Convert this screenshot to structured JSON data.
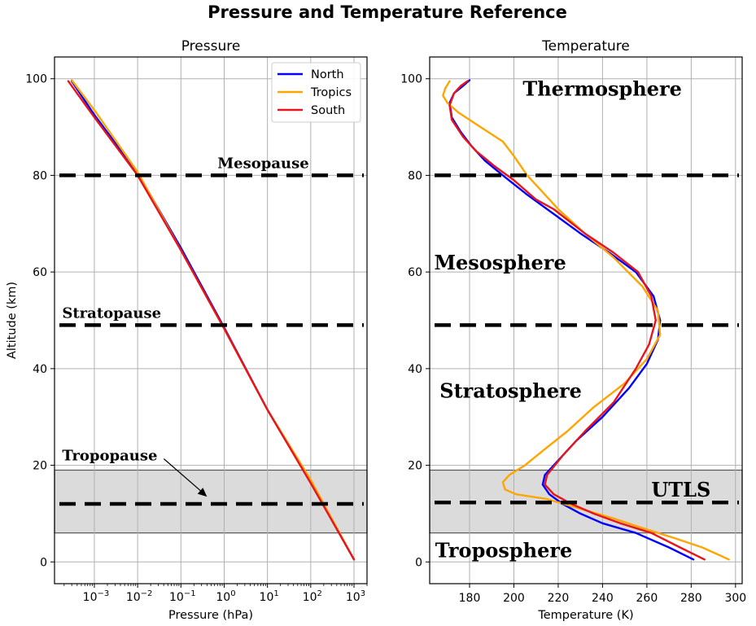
{
  "title": "Pressure and Temperature Reference",
  "colors": {
    "North": "#0000ff",
    "Tropics": "#ffa500",
    "South": "#e8141c",
    "shade": "#dcdbdc",
    "grid": "#b0b0b0"
  },
  "chart_data": [
    {
      "type": "line",
      "title": "Pressure",
      "xlabel": "Pressure (hPa)",
      "ylabel": "Altitude (km)",
      "xscale": "log",
      "xlim": [
        0.00012,
        2000
      ],
      "ylim": [
        -4.5,
        104.5
      ],
      "xticks": [
        {
          "base": "10",
          "exp": "−3",
          "value": 0.001
        },
        {
          "base": "10",
          "exp": "−2",
          "value": 0.01
        },
        {
          "base": "10",
          "exp": "−1",
          "value": 0.1
        },
        {
          "base": "10",
          "exp": "0",
          "value": 1
        },
        {
          "base": "10",
          "exp": "1",
          "value": 10
        },
        {
          "base": "10",
          "exp": "2",
          "value": 100
        },
        {
          "base": "10",
          "exp": "3",
          "value": 1000
        }
      ],
      "yticks": [
        "0",
        "20",
        "40",
        "60",
        "80",
        "100"
      ],
      "grid": true,
      "legend": {
        "placement": "top-right",
        "entries": [
          "North",
          "Tropics",
          "South"
        ]
      },
      "series": [
        {
          "name": "North",
          "x": [
            1000,
            100,
            10,
            1,
            0.1,
            0.01,
            0.001,
            0.0003
          ],
          "y": [
            0.5,
            16.5,
            31.5,
            48.5,
            65.0,
            80.5,
            92.5,
            99.5
          ]
        },
        {
          "name": "Tropics",
          "x": [
            1000,
            100,
            10,
            1,
            0.1,
            0.01,
            0.001,
            0.0003
          ],
          "y": [
            0.5,
            17.0,
            31.5,
            48.2,
            64.5,
            80.7,
            93.5,
            99.7
          ]
        },
        {
          "name": "South",
          "x": [
            1000,
            100,
            10,
            1,
            0.1,
            0.01,
            0.001,
            0.00025
          ],
          "y": [
            0.5,
            16.3,
            31.5,
            48.3,
            64.5,
            80.0,
            92.0,
            99.5
          ]
        }
      ],
      "hlines": [
        80,
        49,
        12
      ],
      "shaded_band": [
        6,
        19
      ],
      "annotations": [
        {
          "text": "Mesopause",
          "x": 0.7,
          "y": 81.5
        },
        {
          "text": "Stratopause",
          "x": 0.00018,
          "y": 50.5
        },
        {
          "text": "Tropopause",
          "x": 0.00018,
          "y": 21,
          "arrow_to": [
            0.4,
            13.5
          ]
        }
      ]
    },
    {
      "type": "line",
      "title": "Temperature",
      "xlabel": "Temperature (K)",
      "ylabel": "",
      "xlim": [
        162,
        303
      ],
      "ylim": [
        -4.5,
        104.5
      ],
      "xticks": [
        "180",
        "200",
        "220",
        "240",
        "260",
        "280",
        "300"
      ],
      "yticks": [
        "0",
        "20",
        "40",
        "60",
        "80",
        "100"
      ],
      "grid": true,
      "series": [
        {
          "name": "North",
          "x": [
            281,
            270,
            255,
            240,
            230,
            222,
            216,
            213,
            214,
            220,
            228,
            240,
            252,
            260,
            265,
            266,
            263,
            255,
            243,
            230,
            218,
            206,
            195,
            187,
            181,
            176,
            172,
            171,
            173,
            177,
            180
          ],
          "y": [
            0.5,
            3,
            6,
            8,
            10,
            12,
            14,
            16,
            18,
            21,
            25,
            30,
            36,
            41,
            46,
            50,
            55,
            60,
            64,
            68,
            72,
            76,
            80,
            83,
            86,
            89,
            92,
            95,
            97,
            98.5,
            99.7
          ]
        },
        {
          "name": "Tropics",
          "x": [
            297,
            285,
            272,
            258,
            245,
            230,
            215,
            201,
            196,
            195,
            198,
            205,
            213,
            224,
            236,
            250,
            260,
            266,
            265,
            258,
            245,
            232,
            220,
            212,
            206,
            203,
            200,
            195,
            185,
            175,
            170,
            168,
            169,
            171
          ],
          "y": [
            0.5,
            3,
            5,
            7,
            9,
            11,
            13,
            14,
            15,
            16.5,
            18,
            20,
            23,
            27,
            32,
            37,
            42,
            47,
            52,
            57,
            63,
            68,
            73,
            77,
            80,
            82,
            84,
            87,
            90,
            93,
            95,
            96.5,
            98,
            99.5
          ]
        },
        {
          "name": "South",
          "x": [
            286,
            275,
            262,
            248,
            236,
            226,
            218,
            214,
            215,
            222,
            232,
            245,
            255,
            261,
            264,
            262,
            256,
            245,
            232,
            218,
            210,
            200,
            191,
            183,
            177,
            172,
            171,
            173,
            176,
            179
          ],
          "y": [
            0.5,
            3,
            6,
            8,
            10,
            12,
            14,
            16,
            18,
            22,
            27,
            33,
            40,
            45,
            50,
            55,
            60,
            64,
            68,
            73,
            75,
            79,
            82,
            85,
            88,
            91.5,
            94.5,
            97,
            98.5,
            99.5
          ]
        }
      ],
      "hlines": [
        80,
        49,
        12.3
      ],
      "shaded_band": [
        6,
        19
      ],
      "annotations": [
        {
          "text": "Thermosphere",
          "x": 204,
          "y": 96.5
        },
        {
          "text": "Mesosphere",
          "x": 164,
          "y": 60.5
        },
        {
          "text": "Stratosphere",
          "x": 166.5,
          "y": 34
        },
        {
          "text": "UTLS",
          "x": 262,
          "y": 13.5
        },
        {
          "text": "Troposphere",
          "x": 164.5,
          "y": 1
        }
      ]
    }
  ]
}
